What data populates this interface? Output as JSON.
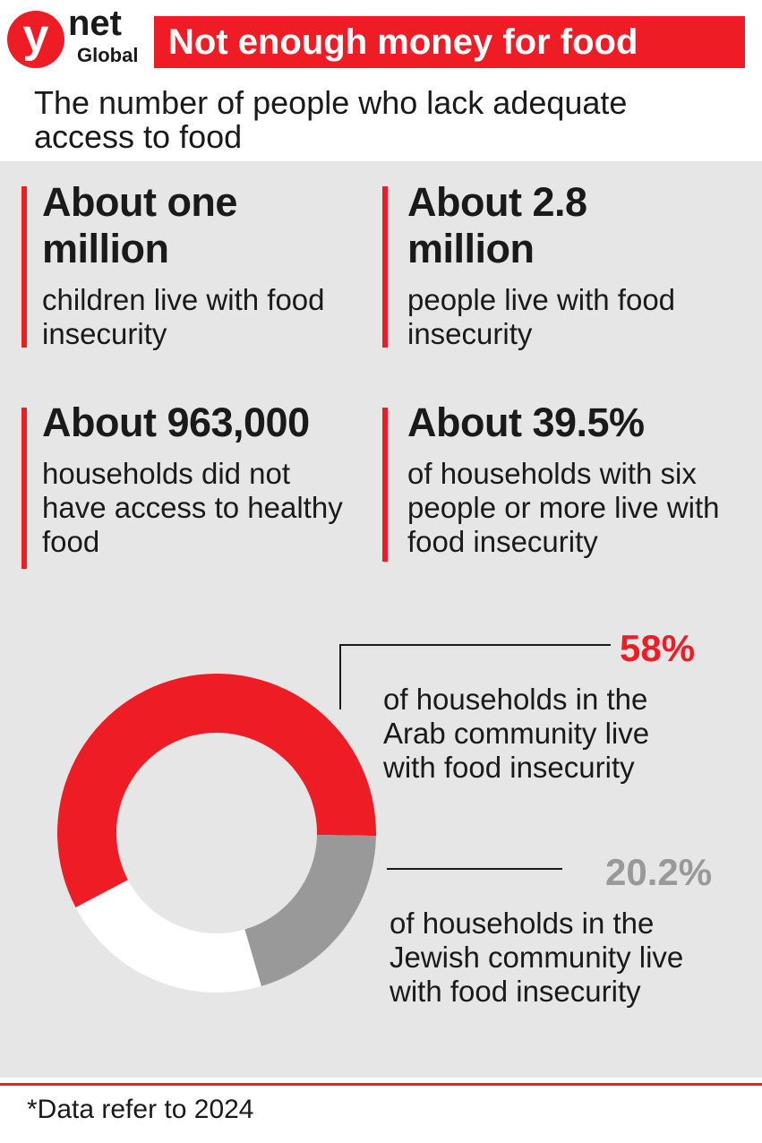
{
  "header": {
    "logo_letter": "y",
    "logo_top": "net",
    "logo_bottom": "Global",
    "title": "Not enough money for food",
    "subtitle": "The number of people who lack adequate access to food"
  },
  "stats": [
    {
      "value": "About one million",
      "text": "children live with food insecurity"
    },
    {
      "value": "About 2.8 million",
      "text": "people live with food insecurity"
    },
    {
      "value": "About 963,000",
      "text": "households did not have access to healthy food"
    },
    {
      "value": "About 39.5%",
      "text": "of households with six people or more live with food insecurity"
    }
  ],
  "chart_data": {
    "type": "pie",
    "values": [
      58,
      20.2
    ],
    "value_labels": [
      "58%",
      "20.2%"
    ],
    "colors": [
      "#ee1c25",
      "#999999"
    ],
    "descriptions": [
      "of households in the Arab community live with food insecurity",
      "of households in the Jewish community live with food insecurity"
    ]
  },
  "footnote": "*Data refer to 2024"
}
